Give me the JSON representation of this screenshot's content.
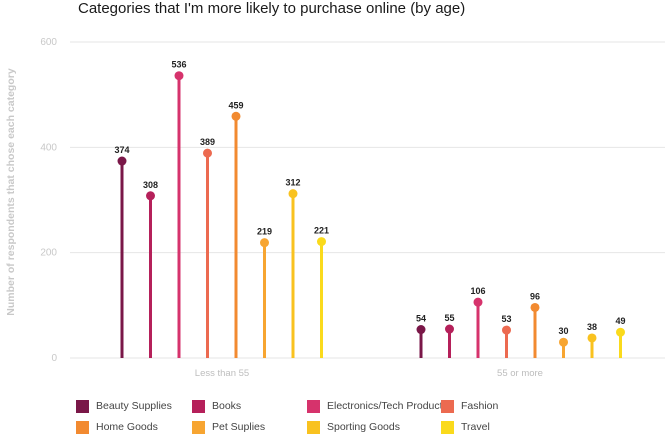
{
  "chart_data": {
    "type": "lollipop",
    "title": "Categories that I'm more likely to purchase online (by age)",
    "ylabel": "Number of respondents that chose each category",
    "xlabel": "",
    "ylim": [
      0,
      600
    ],
    "yticks": [
      0,
      200,
      400,
      600
    ],
    "grid": true,
    "legend_position": "bottom",
    "categories": [
      "Less than 55",
      "55 or more"
    ],
    "series": [
      {
        "name": "Beauty Supplies",
        "color": "#7a1748",
        "values": [
          374,
          54
        ]
      },
      {
        "name": "Books",
        "color": "#b5205a",
        "values": [
          308,
          55
        ]
      },
      {
        "name": "Electronics/Tech Products",
        "color": "#d6336c",
        "values": [
          536,
          106
        ]
      },
      {
        "name": "Fashion",
        "color": "#ec6a50",
        "values": [
          389,
          53
        ]
      },
      {
        "name": "Home Goods",
        "color": "#f28a30",
        "values": [
          459,
          96
        ]
      },
      {
        "name": "Pet Suplies",
        "color": "#f7a531",
        "values": [
          219,
          30
        ]
      },
      {
        "name": "Sporting Goods",
        "color": "#f9c21f",
        "values": [
          312,
          38
        ]
      },
      {
        "name": "Travel",
        "color": "#fada1c",
        "values": [
          221,
          49
        ]
      }
    ]
  }
}
